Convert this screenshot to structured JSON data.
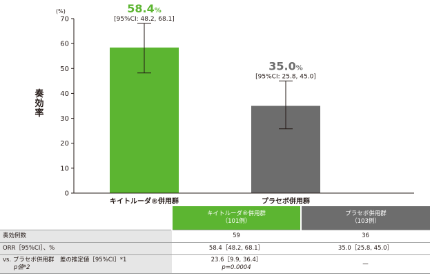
{
  "chart_data": {
    "type": "bar",
    "ylabel": "奏効率",
    "y_unit": "(%)",
    "ylim": [
      0,
      70
    ],
    "yticks": [
      0,
      10,
      20,
      30,
      40,
      50,
      60,
      70
    ],
    "grid": false,
    "categories": [
      "キイトルーダ®併用群",
      "プラセボ併用群"
    ],
    "values": [
      58.4,
      35.0
    ],
    "ci_low": [
      48.2,
      25.8
    ],
    "ci_high": [
      68.1,
      45.0
    ],
    "value_labels": [
      "58.4",
      "35.0"
    ],
    "value_unit": "%",
    "ci_labels": [
      "[95%CI: 48.2, 68.1]",
      "[95%CI: 25.8, 45.0]"
    ],
    "colors": [
      "#5cb531",
      "#6d6d6d"
    ],
    "label_colors": [
      "#5cb531",
      "#6d6d6d"
    ]
  },
  "table": {
    "header_g": [
      "キイトルーダ®併用群",
      "（101例）"
    ],
    "header_d": [
      "プラセボ併用群",
      "（103例）"
    ],
    "rows": [
      {
        "label": "奏効例数",
        "g": "59",
        "d": "36"
      },
      {
        "label": "ORR［95%CI］、%",
        "g": "58.4［48.2, 68.1］",
        "d": "35.0［25.8, 45.0］"
      },
      {
        "label": "vs. プラセボ併用群　差の推定値［95%CI］*1",
        "label2": "p値*2",
        "g": "23.6［9.9, 36.4］",
        "g2": "p=0.0004",
        "d": "—"
      }
    ]
  },
  "colors": {
    "table_label_bg": "#e6e6e6",
    "border": "#9fa0a0"
  }
}
